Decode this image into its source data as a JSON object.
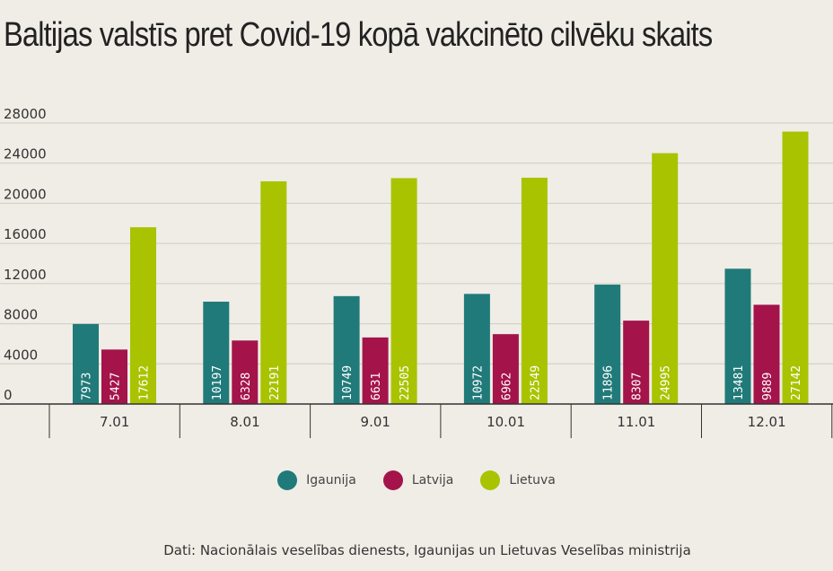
{
  "chart_data": {
    "type": "bar",
    "title": "Baltijas valstīs pret Covid-19 kopā vakcinēto cilvēku skaits",
    "categories": [
      "7.01",
      "8.01",
      "9.01",
      "10.01",
      "11.01",
      "12.01"
    ],
    "series": [
      {
        "name": "Igaunija",
        "color": "#217a7a",
        "values": [
          7973,
          10197,
          10749,
          10972,
          11896,
          13481
        ]
      },
      {
        "name": "Latvija",
        "color": "#a4134a",
        "values": [
          5427,
          6328,
          6631,
          6962,
          8307,
          9889
        ]
      },
      {
        "name": "Lietuva",
        "color": "#a9c300",
        "values": [
          17612,
          22191,
          22505,
          22549,
          24995,
          27142
        ]
      }
    ],
    "yticks": [
      "0",
      "4000",
      "8000",
      "12000",
      "16000",
      "20000",
      "24000",
      "28000"
    ],
    "ylim": [
      0,
      28000
    ],
    "grid": true,
    "legend_position": "bottom",
    "source": "Dati: Nacionālais veselības dienests, Igaunijas un Lietuvas Veselības ministrija"
  }
}
